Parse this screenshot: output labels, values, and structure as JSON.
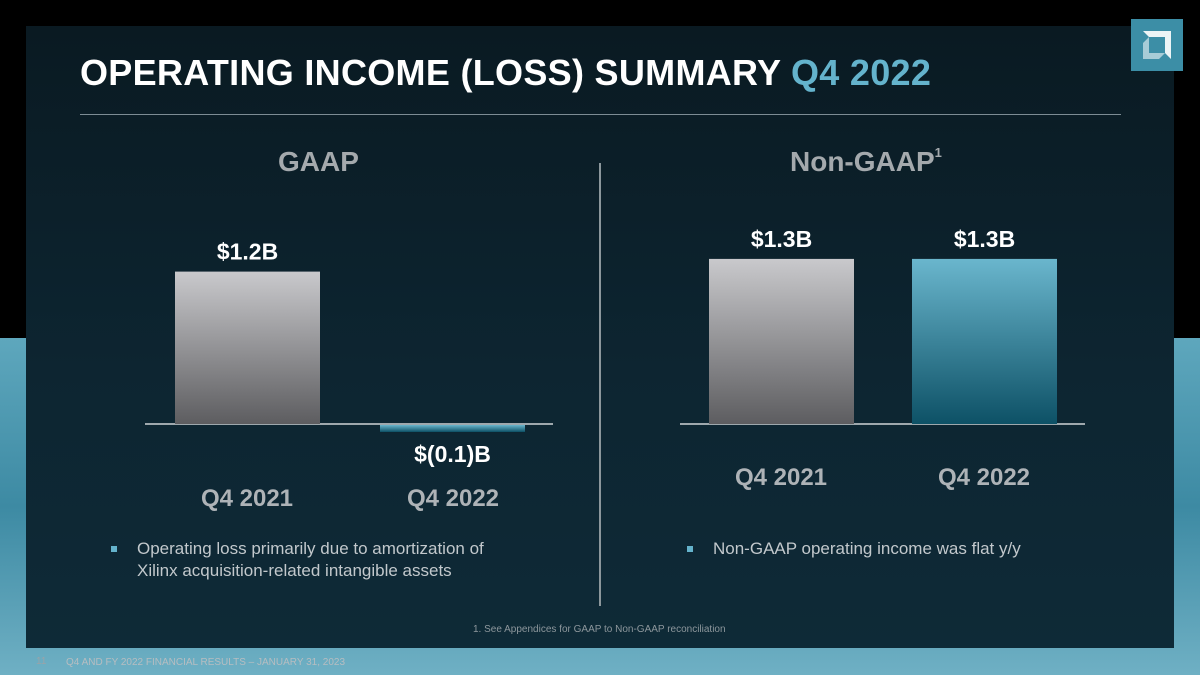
{
  "slide": {
    "title_main": "OPERATING INCOME (LOSS) SUMMARY",
    "title_accent": "Q4 2022",
    "footnote": "1. See Appendices for GAAP to Non-GAAP reconciliation",
    "page_number": "11",
    "footer": "Q4 AND FY 2022 FINANCIAL RESULTS – JANUARY 31, 2023",
    "colors": {
      "accent": "#64b3cc",
      "bar_gray_top": "#c9c9cc",
      "bar_gray_bottom": "#5d5d60",
      "bar_teal_top": "#6ab6cd",
      "bar_teal_bottom": "#0d5166"
    }
  },
  "chart_data": [
    {
      "type": "bar",
      "title": "GAAP",
      "categories": [
        "Q4 2021",
        "Q4 2022"
      ],
      "values": [
        1.2,
        -0.1
      ],
      "data_labels": [
        "$1.2B",
        "$(0.1)B"
      ],
      "unit": "$B",
      "ylim": [
        -0.1,
        1.3
      ],
      "grid": false,
      "bullet": "Operating loss primarily due to amortization of Xilinx acquisition-related intangible assets"
    },
    {
      "type": "bar",
      "title": "Non-GAAP",
      "title_superscript": "1",
      "categories": [
        "Q4 2021",
        "Q4 2022"
      ],
      "values": [
        1.3,
        1.3
      ],
      "data_labels": [
        "$1.3B",
        "$1.3B"
      ],
      "unit": "$B",
      "ylim": [
        0,
        1.3
      ],
      "grid": false,
      "bullet": "Non-GAAP operating income was flat y/y"
    }
  ]
}
